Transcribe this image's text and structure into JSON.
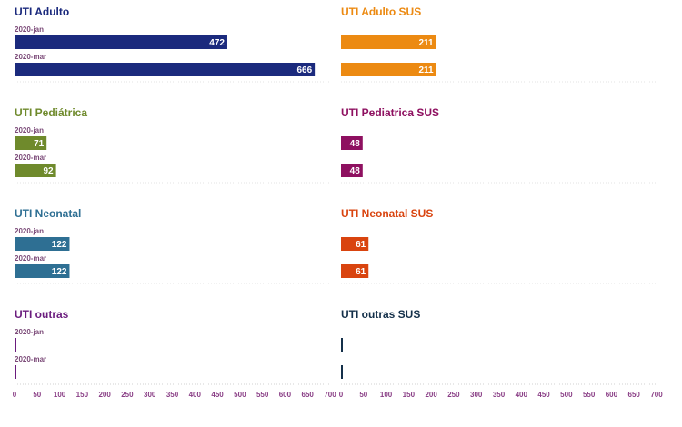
{
  "chart_data": {
    "type": "bar",
    "orientation": "horizontal",
    "xlim": [
      0,
      700
    ],
    "x_ticks": [
      "0",
      "50",
      "100",
      "150",
      "200",
      "250",
      "300",
      "350",
      "400",
      "450",
      "500",
      "550",
      "600",
      "650",
      "700"
    ],
    "grid": false,
    "panels": [
      {
        "title": "UTI Adulto",
        "color": "#1b2a7d",
        "categories": [
          "2020-jan",
          "2020-mar"
        ],
        "values": [
          472,
          666
        ]
      },
      {
        "title": "UTI Adulto SUS",
        "color": "#ec8a12",
        "categories": [
          "",
          ""
        ],
        "values": [
          211,
          211
        ]
      },
      {
        "title": "UTI Pediátrica",
        "color": "#6f8a2c",
        "categories": [
          "2020-jan",
          "2020-mar"
        ],
        "values": [
          71,
          92
        ]
      },
      {
        "title": "UTI Pediatrica SUS",
        "color": "#8e1060",
        "categories": [
          "",
          ""
        ],
        "values": [
          48,
          48
        ]
      },
      {
        "title": "UTI Neonatal",
        "color": "#2e6f93",
        "categories": [
          "2020-jan",
          "2020-mar"
        ],
        "values": [
          122,
          122
        ]
      },
      {
        "title": "UTI Neonatal SUS",
        "color": "#d9440f",
        "categories": [
          "",
          ""
        ],
        "values": [
          61,
          61
        ]
      },
      {
        "title": "UTI outras",
        "color": "#6a1b7d",
        "categories": [
          "2020-jan",
          "2020-mar"
        ],
        "values": [
          4,
          4
        ],
        "show_values": false
      },
      {
        "title": "UTI outras SUS",
        "color": "#14304a",
        "categories": [
          "",
          ""
        ],
        "values": [
          2,
          2
        ],
        "show_values": false
      }
    ]
  }
}
